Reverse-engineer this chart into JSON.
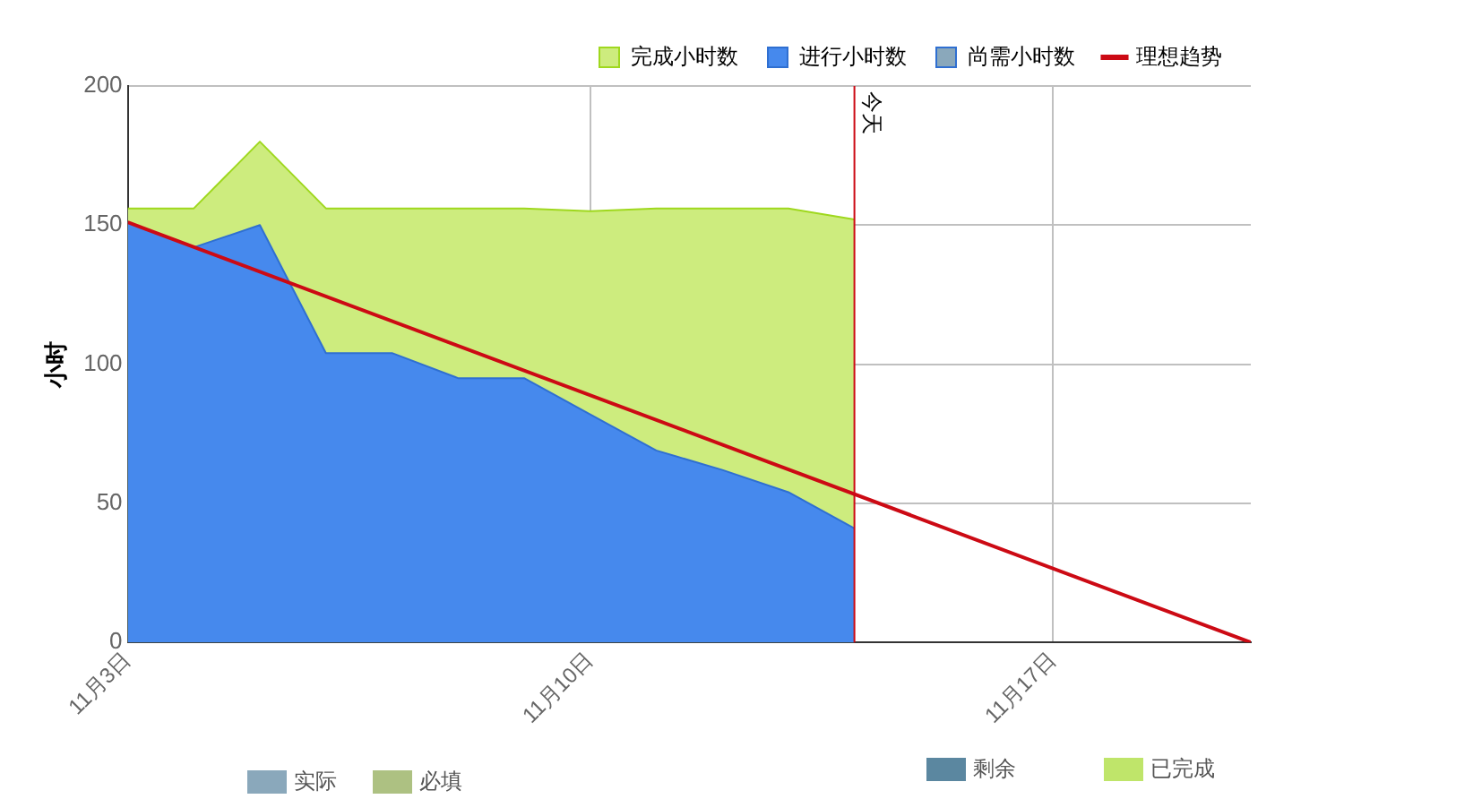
{
  "chart_data": {
    "type": "area",
    "ylabel": "小时",
    "x": [
      "--11-03",
      "--11-04",
      "--11-05",
      "--11-06",
      "--11-07",
      "--11-08",
      "--11-09",
      "--11-10",
      "--11-11",
      "--11-12",
      "--11-13",
      "--11-14"
    ],
    "series": [
      {
        "name": "完成小时数",
        "color": "#cdec7e",
        "values": [
          156,
          156,
          180,
          156,
          156,
          156,
          156,
          155,
          156,
          156,
          156,
          152
        ]
      },
      {
        "name": "进行小时数",
        "color": "#4689ed",
        "values": [
          151,
          142,
          150,
          104,
          104,
          95,
          95,
          82,
          69,
          62,
          54,
          41
        ]
      },
      {
        "name": "尚需小时数",
        "color": "#8aa8bb",
        "values": [
          null,
          null,
          null,
          null,
          null,
          null,
          null,
          null,
          null,
          null,
          null,
          null
        ]
      },
      {
        "name": "理想趋势",
        "color": "#cc0a14",
        "type": "line",
        "x": [
          "--11-03",
          "--11-20"
        ],
        "values": [
          151,
          0
        ]
      }
    ],
    "xlim": [
      "--11-03",
      "--11-20"
    ],
    "xticks": [
      {
        "value": "--11-03",
        "label": "11月3日"
      },
      {
        "value": "--11-10",
        "label": "11月10日"
      },
      {
        "value": "--11-17",
        "label": "11月17日"
      }
    ],
    "ylim": [
      0,
      200
    ],
    "yticks": [
      0,
      50,
      100,
      150,
      200
    ],
    "grid": true,
    "legend": "top right",
    "marker": "none",
    "ref_lines": [
      {
        "axis": "x",
        "value": "--11-14",
        "label": "今天",
        "color": "#cc0a14"
      }
    ],
    "annotations": [
      "实际",
      "必填",
      "剩余",
      "已完成"
    ]
  }
}
